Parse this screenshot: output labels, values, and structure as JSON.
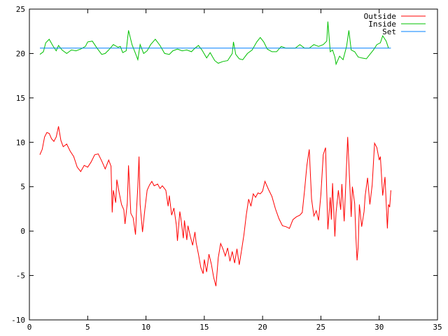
{
  "chart_data": {
    "type": "line",
    "xlabel": "",
    "ylabel": "",
    "xlim": [
      0,
      35
    ],
    "ylim": [
      -10,
      25
    ],
    "x_ticks": [
      "0",
      "5",
      "10",
      "15",
      "20",
      "25",
      "30",
      "35"
    ],
    "y_ticks": [
      "-10",
      "-5",
      "0",
      "5",
      "10",
      "15",
      "20",
      "25"
    ],
    "grid": false,
    "legend_position": "top-right",
    "series": [
      {
        "name": "Outside",
        "color": "#ff0000",
        "points": [
          [
            0.9,
            8.6
          ],
          [
            1.1,
            9.2
          ],
          [
            1.3,
            10.6
          ],
          [
            1.5,
            11.1
          ],
          [
            1.7,
            11.0
          ],
          [
            1.9,
            10.4
          ],
          [
            2.1,
            10.1
          ],
          [
            2.3,
            10.6
          ],
          [
            2.5,
            11.8
          ],
          [
            2.7,
            10.2
          ],
          [
            2.9,
            9.5
          ],
          [
            3.2,
            9.8
          ],
          [
            3.5,
            9.0
          ],
          [
            3.8,
            8.4
          ],
          [
            4.1,
            7.2
          ],
          [
            4.4,
            6.7
          ],
          [
            4.7,
            7.4
          ],
          [
            5.0,
            7.2
          ],
          [
            5.3,
            7.8
          ],
          [
            5.6,
            8.6
          ],
          [
            5.9,
            8.7
          ],
          [
            6.2,
            7.9
          ],
          [
            6.5,
            7.0
          ],
          [
            6.8,
            8.0
          ],
          [
            7.0,
            7.3
          ],
          [
            7.1,
            2.1
          ],
          [
            7.2,
            4.6
          ],
          [
            7.4,
            3.2
          ],
          [
            7.5,
            5.8
          ],
          [
            7.7,
            4.3
          ],
          [
            7.9,
            3.0
          ],
          [
            8.1,
            2.4
          ],
          [
            8.2,
            0.8
          ],
          [
            8.4,
            3.2
          ],
          [
            8.5,
            7.4
          ],
          [
            8.7,
            2.0
          ],
          [
            8.9,
            1.5
          ],
          [
            9.1,
            -0.4
          ],
          [
            9.2,
            2.6
          ],
          [
            9.3,
            5.0
          ],
          [
            9.4,
            8.4
          ],
          [
            9.5,
            3.0
          ],
          [
            9.7,
            -0.1
          ],
          [
            9.9,
            2.4
          ],
          [
            10.1,
            4.6
          ],
          [
            10.3,
            5.2
          ],
          [
            10.5,
            5.6
          ],
          [
            10.7,
            5.1
          ],
          [
            11.0,
            5.3
          ],
          [
            11.2,
            4.8
          ],
          [
            11.4,
            5.1
          ],
          [
            11.7,
            4.6
          ],
          [
            11.9,
            2.8
          ],
          [
            12.0,
            4.0
          ],
          [
            12.2,
            1.8
          ],
          [
            12.4,
            2.6
          ],
          [
            12.6,
            0.7
          ],
          [
            12.7,
            -1.1
          ],
          [
            12.9,
            2.2
          ],
          [
            13.0,
            1.4
          ],
          [
            13.2,
            -0.8
          ],
          [
            13.3,
            1.2
          ],
          [
            13.5,
            -1.0
          ],
          [
            13.6,
            0.6
          ],
          [
            13.8,
            -0.6
          ],
          [
            14.0,
            -1.6
          ],
          [
            14.2,
            -0.1
          ],
          [
            14.3,
            -1.3
          ],
          [
            14.5,
            -2.6
          ],
          [
            14.7,
            -4.1
          ],
          [
            14.9,
            -4.8
          ],
          [
            15.0,
            -3.2
          ],
          [
            15.2,
            -4.6
          ],
          [
            15.4,
            -2.6
          ],
          [
            15.6,
            -3.7
          ],
          [
            15.8,
            -5.2
          ],
          [
            16.0,
            -6.2
          ],
          [
            16.2,
            -3.0
          ],
          [
            16.4,
            -1.4
          ],
          [
            16.6,
            -2.0
          ],
          [
            16.8,
            -2.8
          ],
          [
            17.0,
            -1.9
          ],
          [
            17.2,
            -3.4
          ],
          [
            17.4,
            -2.3
          ],
          [
            17.6,
            -3.6
          ],
          [
            17.8,
            -2.0
          ],
          [
            18.0,
            -3.8
          ],
          [
            18.2,
            -2.1
          ],
          [
            18.4,
            -0.4
          ],
          [
            18.6,
            1.8
          ],
          [
            18.8,
            3.6
          ],
          [
            19.0,
            2.8
          ],
          [
            19.2,
            4.2
          ],
          [
            19.4,
            3.8
          ],
          [
            19.6,
            4.3
          ],
          [
            19.8,
            4.2
          ],
          [
            20.0,
            4.5
          ],
          [
            20.2,
            5.6
          ],
          [
            20.5,
            4.7
          ],
          [
            20.8,
            3.9
          ],
          [
            21.1,
            2.5
          ],
          [
            21.4,
            1.4
          ],
          [
            21.7,
            0.6
          ],
          [
            22.0,
            0.5
          ],
          [
            22.3,
            0.3
          ],
          [
            22.6,
            1.3
          ],
          [
            22.9,
            1.6
          ],
          [
            23.2,
            1.8
          ],
          [
            23.4,
            2.1
          ],
          [
            23.6,
            4.6
          ],
          [
            23.8,
            7.4
          ],
          [
            24.0,
            9.2
          ],
          [
            24.2,
            3.6
          ],
          [
            24.4,
            1.7
          ],
          [
            24.6,
            2.3
          ],
          [
            24.8,
            1.2
          ],
          [
            25.0,
            4.1
          ],
          [
            25.2,
            8.6
          ],
          [
            25.4,
            9.4
          ],
          [
            25.5,
            4.4
          ],
          [
            25.6,
            0.2
          ],
          [
            25.8,
            3.8
          ],
          [
            25.9,
            1.3
          ],
          [
            26.0,
            5.4
          ],
          [
            26.2,
            -0.6
          ],
          [
            26.3,
            2.1
          ],
          [
            26.5,
            4.6
          ],
          [
            26.7,
            2.4
          ],
          [
            26.8,
            5.3
          ],
          [
            27.0,
            1.1
          ],
          [
            27.1,
            4.2
          ],
          [
            27.3,
            10.6
          ],
          [
            27.4,
            7.6
          ],
          [
            27.6,
            1.6
          ],
          [
            27.7,
            5.0
          ],
          [
            27.9,
            3.1
          ],
          [
            28.0,
            -0.6
          ],
          [
            28.1,
            -3.3
          ],
          [
            28.2,
            -1.8
          ],
          [
            28.3,
            3.0
          ],
          [
            28.5,
            0.5
          ],
          [
            28.7,
            2.2
          ],
          [
            28.8,
            4.0
          ],
          [
            29.0,
            6.0
          ],
          [
            29.2,
            3.0
          ],
          [
            29.4,
            5.2
          ],
          [
            29.6,
            9.9
          ],
          [
            29.8,
            9.4
          ],
          [
            30.0,
            8.0
          ],
          [
            30.1,
            8.4
          ],
          [
            30.3,
            4.0
          ],
          [
            30.5,
            6.1
          ],
          [
            30.7,
            0.3
          ],
          [
            30.8,
            3.0
          ],
          [
            30.9,
            2.7
          ],
          [
            31.0,
            4.6
          ]
        ]
      },
      {
        "name": "Inside",
        "color": "#00c000",
        "points": [
          [
            0.9,
            19.9
          ],
          [
            1.2,
            20.2
          ],
          [
            1.4,
            21.2
          ],
          [
            1.7,
            21.6
          ],
          [
            2.0,
            20.9
          ],
          [
            2.3,
            20.3
          ],
          [
            2.5,
            20.9
          ],
          [
            2.8,
            20.4
          ],
          [
            3.2,
            20.0
          ],
          [
            3.6,
            20.4
          ],
          [
            4.0,
            20.3
          ],
          [
            4.4,
            20.5
          ],
          [
            4.8,
            20.8
          ],
          [
            5.0,
            21.3
          ],
          [
            5.4,
            21.4
          ],
          [
            5.8,
            20.6
          ],
          [
            6.2,
            19.9
          ],
          [
            6.5,
            20.0
          ],
          [
            6.8,
            20.4
          ],
          [
            7.2,
            21.0
          ],
          [
            7.6,
            20.7
          ],
          [
            7.8,
            20.8
          ],
          [
            8.0,
            20.1
          ],
          [
            8.3,
            20.3
          ],
          [
            8.5,
            22.6
          ],
          [
            8.8,
            21.0
          ],
          [
            9.1,
            20.0
          ],
          [
            9.3,
            19.3
          ],
          [
            9.5,
            21.0
          ],
          [
            9.8,
            20.0
          ],
          [
            10.1,
            20.3
          ],
          [
            10.4,
            21.0
          ],
          [
            10.8,
            21.6
          ],
          [
            11.2,
            20.9
          ],
          [
            11.6,
            20.0
          ],
          [
            12.0,
            19.9
          ],
          [
            12.3,
            20.3
          ],
          [
            12.7,
            20.5
          ],
          [
            13.1,
            20.3
          ],
          [
            13.5,
            20.4
          ],
          [
            13.9,
            20.2
          ],
          [
            14.2,
            20.6
          ],
          [
            14.5,
            20.9
          ],
          [
            14.8,
            20.4
          ],
          [
            15.2,
            19.5
          ],
          [
            15.5,
            20.1
          ],
          [
            15.9,
            19.2
          ],
          [
            16.2,
            18.9
          ],
          [
            16.6,
            19.1
          ],
          [
            17.0,
            19.2
          ],
          [
            17.4,
            20.0
          ],
          [
            17.5,
            21.3
          ],
          [
            17.7,
            19.9
          ],
          [
            18.0,
            19.4
          ],
          [
            18.3,
            19.3
          ],
          [
            18.7,
            20.0
          ],
          [
            19.1,
            20.4
          ],
          [
            19.5,
            21.3
          ],
          [
            19.8,
            21.8
          ],
          [
            20.1,
            21.3
          ],
          [
            20.4,
            20.5
          ],
          [
            20.8,
            20.2
          ],
          [
            21.2,
            20.2
          ],
          [
            21.6,
            20.8
          ],
          [
            22.0,
            20.6
          ],
          [
            22.4,
            20.6
          ],
          [
            22.8,
            20.6
          ],
          [
            23.2,
            21.0
          ],
          [
            23.6,
            20.6
          ],
          [
            24.0,
            20.6
          ],
          [
            24.4,
            21.0
          ],
          [
            24.8,
            20.8
          ],
          [
            25.2,
            21.0
          ],
          [
            25.5,
            21.4
          ],
          [
            25.6,
            23.6
          ],
          [
            25.8,
            20.2
          ],
          [
            26.0,
            20.4
          ],
          [
            26.2,
            19.6
          ],
          [
            26.3,
            18.8
          ],
          [
            26.6,
            19.7
          ],
          [
            26.9,
            19.3
          ],
          [
            27.2,
            20.8
          ],
          [
            27.4,
            22.6
          ],
          [
            27.6,
            20.4
          ],
          [
            27.9,
            20.2
          ],
          [
            28.2,
            19.6
          ],
          [
            28.5,
            19.5
          ],
          [
            28.9,
            19.4
          ],
          [
            29.2,
            19.9
          ],
          [
            29.5,
            20.4
          ],
          [
            29.8,
            21.0
          ],
          [
            30.1,
            21.2
          ],
          [
            30.3,
            22.0
          ],
          [
            30.6,
            21.4
          ],
          [
            30.8,
            20.6
          ]
        ]
      },
      {
        "name": "Set",
        "color": "#0080ff",
        "points": [
          [
            0.9,
            20.6
          ],
          [
            31.0,
            20.6
          ]
        ]
      }
    ]
  }
}
